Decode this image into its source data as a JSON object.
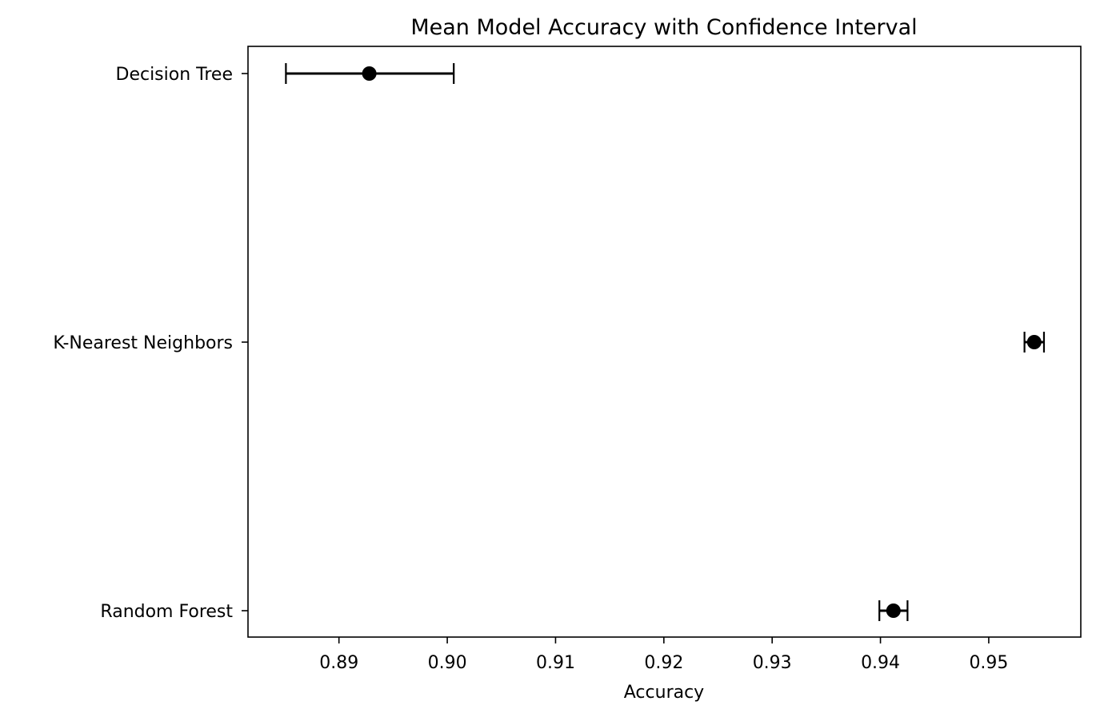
{
  "chart_data": {
    "type": "scatter",
    "title": "Mean Model Accuracy with Confidence Interval",
    "xlabel": "Accuracy",
    "ylabel": "",
    "categories": [
      "Decision Tree",
      "K-Nearest Neighbors",
      "Random Forest"
    ],
    "points": [
      {
        "category": "Decision Tree",
        "mean": 0.8928,
        "lower": 0.8851,
        "upper": 0.9006
      },
      {
        "category": "K-Nearest Neighbors",
        "mean": 0.9542,
        "lower": 0.9533,
        "upper": 0.9551
      },
      {
        "category": "Random Forest",
        "mean": 0.9412,
        "lower": 0.9399,
        "upper": 0.9425
      }
    ],
    "xlim": [
      0.8816,
      0.9585
    ],
    "xticks": [
      "0.89",
      "0.90",
      "0.91",
      "0.92",
      "0.93",
      "0.94",
      "0.95"
    ],
    "grid": false,
    "legend": "none",
    "marker_color": "#000000"
  }
}
